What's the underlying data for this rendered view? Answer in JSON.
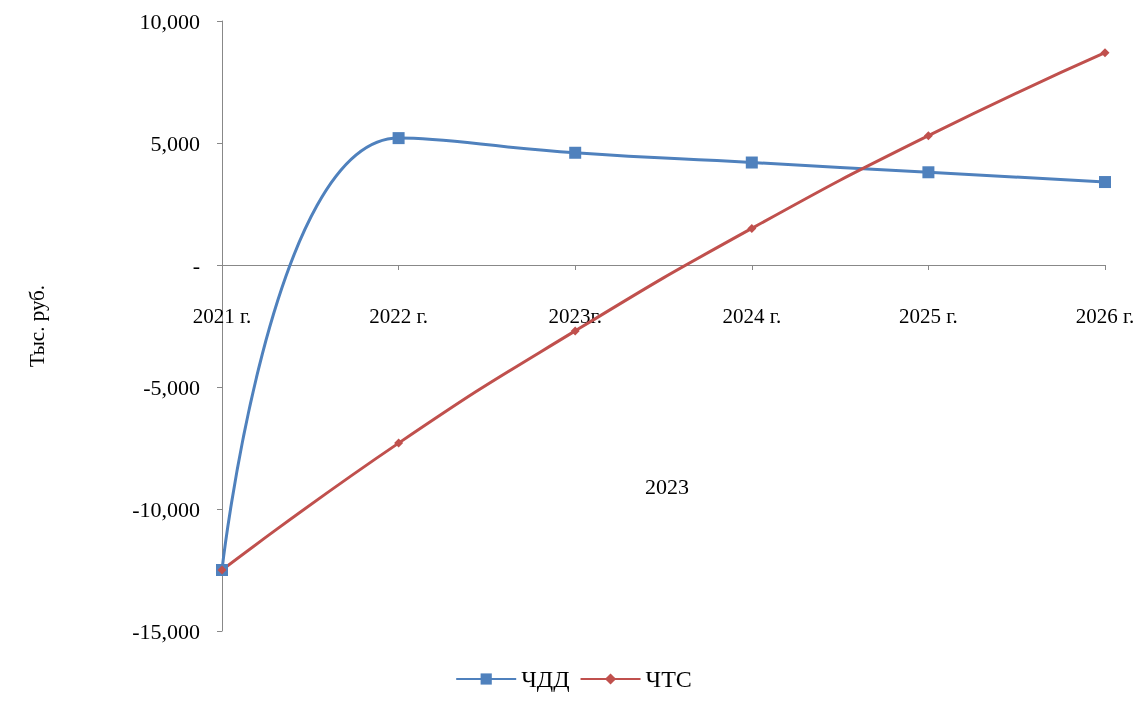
{
  "chart_data": {
    "type": "line",
    "ylabel": "Тыс. руб.",
    "categories": [
      "2021 г.",
      "2022 г.",
      "2023г.",
      "2024 г.",
      "2025 г.",
      "2026 г."
    ],
    "series": [
      {
        "name": "ЧДД",
        "color": "#4f81bd",
        "marker": "square",
        "values": [
          -12500,
          5200,
          4600,
          4200,
          3800,
          3400
        ]
      },
      {
        "name": "ЧТС",
        "color": "#c0504d",
        "marker": "diamond",
        "values": [
          -12500,
          -7300,
          -2700,
          1500,
          5300,
          8700
        ]
      }
    ],
    "ylim": [
      -15000,
      10000
    ],
    "yticks": [
      {
        "value": -15000,
        "label": "-15,000"
      },
      {
        "value": -10000,
        "label": "-10,000"
      },
      {
        "value": -5000,
        "label": "-5,000"
      },
      {
        "value": 0,
        "label": "-"
      },
      {
        "value": 5000,
        "label": "5,000"
      },
      {
        "value": 10000,
        "label": "10,000"
      }
    ],
    "grid": false,
    "legend": "bottom",
    "line_style": "solid",
    "annotations": [
      "2023"
    ]
  }
}
